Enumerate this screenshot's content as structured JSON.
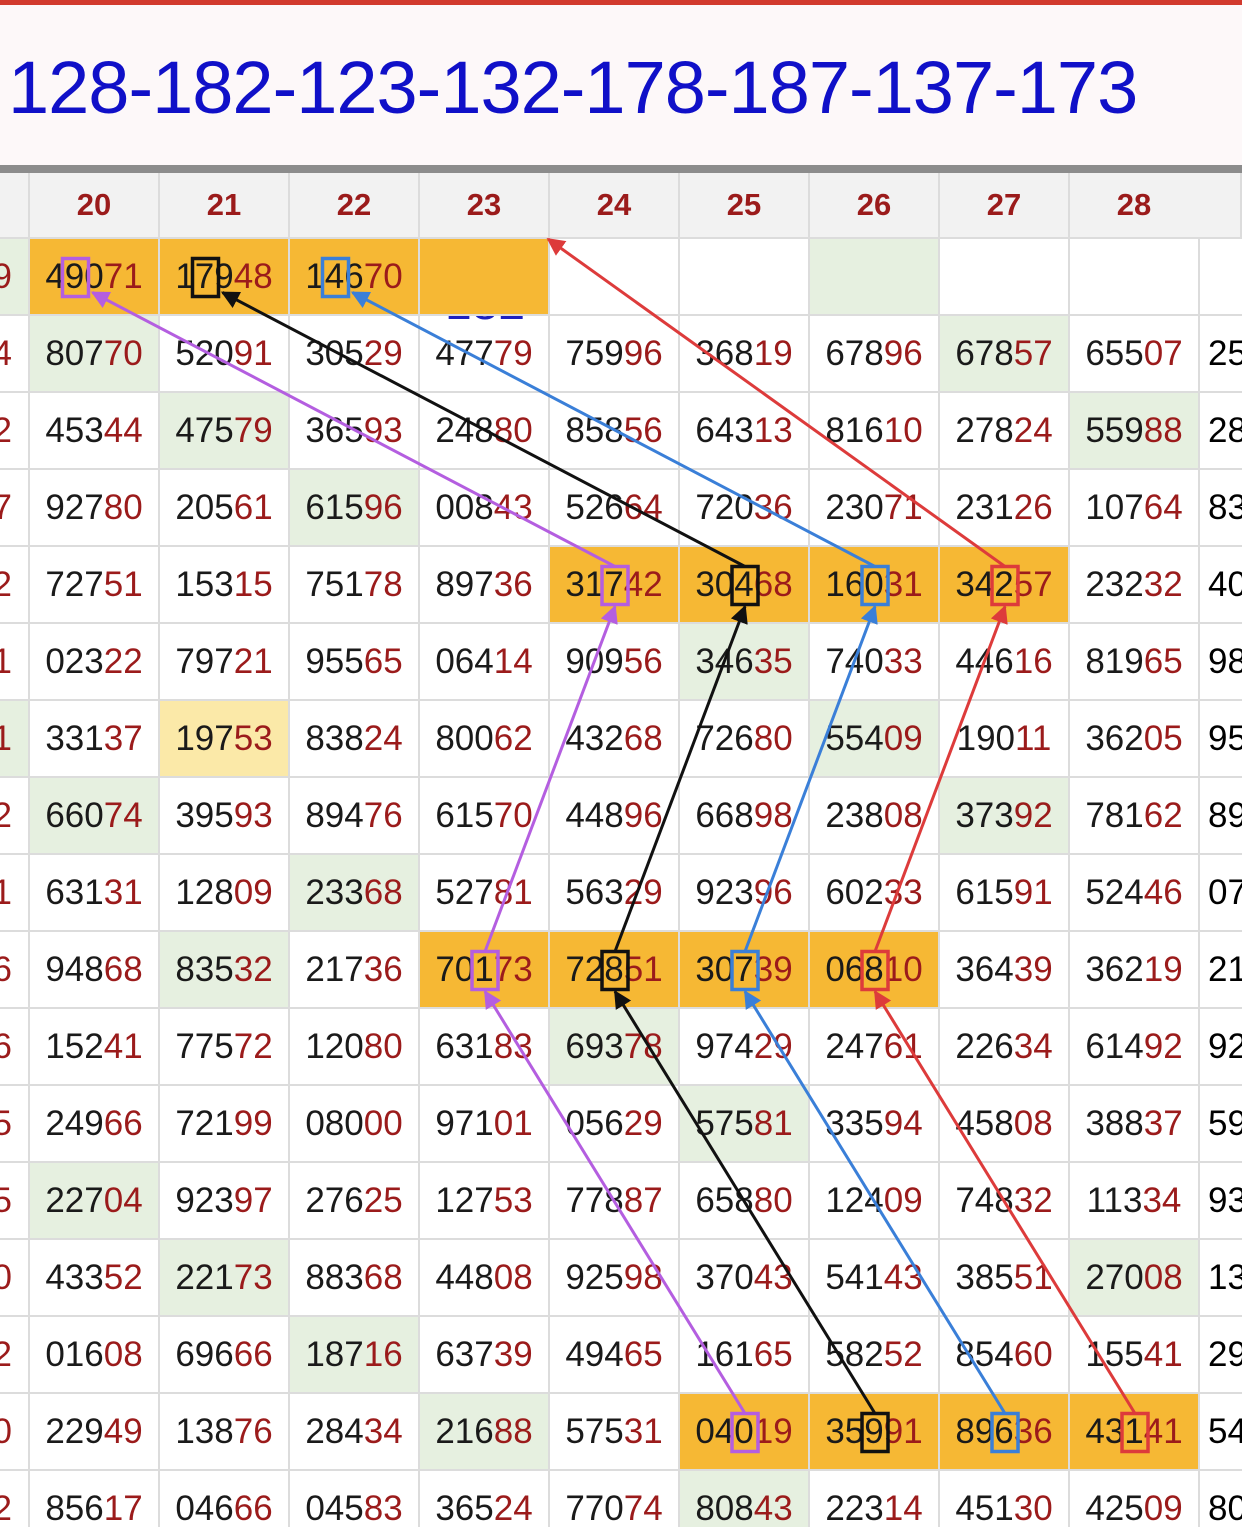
{
  "banner": {
    "text": "128-182-123-132-178-187-137-173"
  },
  "note": {
    "line1": "128",
    "line2": "182"
  },
  "columns": [
    "20",
    "21",
    "22",
    "23",
    "24",
    "25",
    "26",
    "27",
    "28"
  ],
  "left_fragments": [
    "9",
    "4",
    "2",
    "7",
    "2",
    "1",
    "1",
    "2",
    "1",
    "6",
    "6",
    "5",
    "5",
    "0",
    "2",
    "0",
    "2"
  ],
  "right_fragments": [
    "",
    "25",
    "28",
    "83",
    "40",
    "98",
    "95",
    "89",
    "07",
    "21",
    "92",
    "59",
    "93",
    "13",
    "29",
    "54",
    "80"
  ],
  "rows": [
    [
      "49071",
      "17948",
      "14670",
      "",
      "",
      "",
      "",
      "",
      ""
    ],
    [
      "80770",
      "52091",
      "30529",
      "47779",
      "75996",
      "36819",
      "67896",
      "67857",
      "65507"
    ],
    [
      "45344",
      "47579",
      "36593",
      "24880",
      "85856",
      "64313",
      "81610",
      "27824",
      "55988"
    ],
    [
      "92780",
      "20561",
      "61596",
      "00843",
      "52664",
      "72036",
      "23071",
      "23126",
      "10764"
    ],
    [
      "72751",
      "15315",
      "75178",
      "89736",
      "31742",
      "30468",
      "16031",
      "34257",
      "23232"
    ],
    [
      "02322",
      "79721",
      "95565",
      "06414",
      "90956",
      "34635",
      "74033",
      "44616",
      "81965"
    ],
    [
      "33137",
      "19753",
      "83824",
      "80062",
      "43268",
      "72680",
      "55409",
      "19011",
      "36205"
    ],
    [
      "66074",
      "39593",
      "89476",
      "61570",
      "44896",
      "66898",
      "23808",
      "37392",
      "78162"
    ],
    [
      "63131",
      "12809",
      "23368",
      "52781",
      "56329",
      "92396",
      "60233",
      "61591",
      "52446"
    ],
    [
      "94868",
      "83532",
      "21736",
      "70173",
      "72851",
      "30739",
      "06810",
      "36439",
      "36219"
    ],
    [
      "15241",
      "77572",
      "12080",
      "63183",
      "69378",
      "97429",
      "24761",
      "22634",
      "61492"
    ],
    [
      "24966",
      "72199",
      "08000",
      "97101",
      "05629",
      "57581",
      "33594",
      "45808",
      "38837"
    ],
    [
      "22704",
      "92397",
      "27625",
      "12753",
      "77887",
      "65880",
      "12409",
      "74832",
      "11334"
    ],
    [
      "43352",
      "22173",
      "88368",
      "44808",
      "92598",
      "37043",
      "54143",
      "38551",
      "27008"
    ],
    [
      "01608",
      "69666",
      "18716",
      "63739",
      "49465",
      "16165",
      "58252",
      "85460",
      "15541"
    ],
    [
      "22949",
      "13876",
      "28434",
      "21688",
      "57531",
      "04019",
      "35991",
      "89636",
      "43141"
    ],
    [
      "85617",
      "04666",
      "04583",
      "36524",
      "77074",
      "80843",
      "22314",
      "45130",
      "42509"
    ]
  ],
  "highlights": {
    "orange": [
      [
        0,
        0
      ],
      [
        0,
        1
      ],
      [
        0,
        2
      ],
      [
        0,
        3
      ],
      [
        4,
        4
      ],
      [
        4,
        5
      ],
      [
        4,
        6
      ],
      [
        4,
        7
      ],
      [
        9,
        3
      ],
      [
        9,
        4
      ],
      [
        9,
        5
      ],
      [
        9,
        6
      ],
      [
        15,
        5
      ],
      [
        15,
        6
      ],
      [
        15,
        7
      ],
      [
        15,
        8
      ]
    ],
    "green": [
      [
        0,
        6
      ],
      [
        1,
        0
      ],
      [
        1,
        7
      ],
      [
        2,
        1
      ],
      [
        2,
        8
      ],
      [
        3,
        2
      ],
      [
        5,
        5
      ],
      [
        6,
        6
      ],
      [
        7,
        0
      ],
      [
        7,
        7
      ],
      [
        8,
        2
      ],
      [
        9,
        1
      ],
      [
        10,
        4
      ],
      [
        11,
        5
      ],
      [
        12,
        0
      ],
      [
        13,
        1
      ],
      [
        13,
        8
      ],
      [
        14,
        2
      ],
      [
        15,
        3
      ],
      [
        16,
        5
      ]
    ],
    "yellow": [
      [
        6,
        1
      ]
    ]
  },
  "colors": {
    "purple": "#b45ee0",
    "black": "#111111",
    "blue": "#3a7fd8",
    "red": "#dd3b3b",
    "banner_text": "#1010c8",
    "header_text": "#9b1b1b",
    "orange": "#f6b834",
    "green": "#e6f0e0"
  },
  "paths": [
    {
      "color": "purple",
      "boxes": [
        [
          15,
          5,
          2
        ],
        [
          9,
          3,
          2
        ],
        [
          4,
          4,
          2
        ],
        [
          0,
          0,
          1
        ]
      ]
    },
    {
      "color": "black",
      "boxes": [
        [
          15,
          6,
          2
        ],
        [
          9,
          4,
          2
        ],
        [
          4,
          5,
          2
        ],
        [
          0,
          1,
          1
        ]
      ]
    },
    {
      "color": "blue",
      "boxes": [
        [
          15,
          7,
          2
        ],
        [
          9,
          5,
          2
        ],
        [
          4,
          6,
          2
        ],
        [
          0,
          2,
          1
        ]
      ]
    },
    {
      "color": "red",
      "boxes": [
        [
          15,
          8,
          2
        ],
        [
          9,
          6,
          2
        ],
        [
          4,
          7,
          2
        ],
        [
          0,
          3,
          -1
        ]
      ]
    }
  ]
}
